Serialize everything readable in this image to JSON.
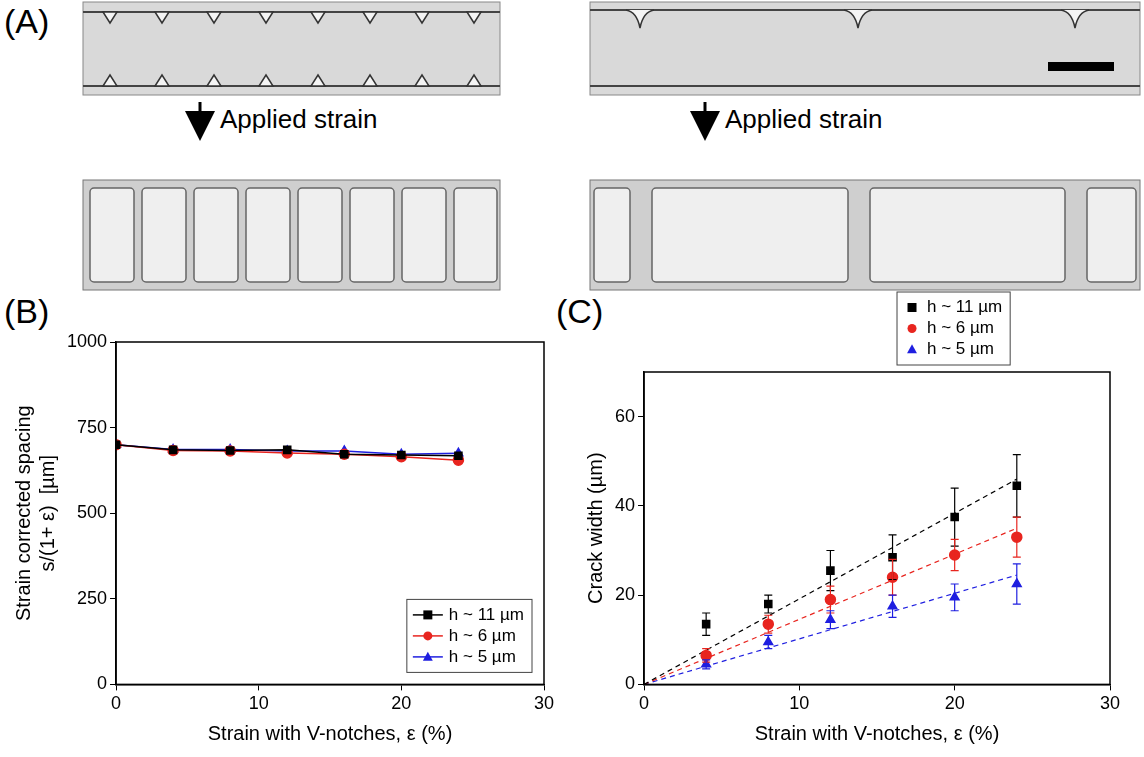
{
  "panel_labels": [
    "(A)",
    "(B)",
    "(C)"
  ],
  "panel_a": {
    "arrow_labels": [
      "Applied strain",
      "Applied strain"
    ]
  },
  "chart_data": [
    {
      "type": "line",
      "x_label": "Strain with V-notches, ε (%)",
      "y_label": [
        "Strain corrected spacing",
        "s/(1+ ε)  [µm]"
      ],
      "x": [
        0,
        4,
        8,
        12,
        16,
        20,
        24
      ],
      "series": [
        {
          "name": "h ~ 11 µm",
          "color": "#000000",
          "marker": "square",
          "values": [
            700,
            685,
            683,
            685,
            672,
            670,
            668
          ]
        },
        {
          "name": "h ~ 6 µm",
          "color": "#e8251f",
          "marker": "circle",
          "values": [
            700,
            683,
            682,
            676,
            672,
            665,
            655
          ]
        },
        {
          "name": "h ~ 5 µm",
          "color": "#1f1fe0",
          "marker": "triangle",
          "values": [
            700,
            686,
            686,
            682,
            682,
            672,
            675
          ]
        }
      ],
      "xlim": [
        0,
        30
      ],
      "xticks": [
        0,
        10,
        20,
        30
      ],
      "ylim": [
        0,
        1000
      ],
      "yticks": [
        0,
        250,
        500,
        750,
        1000
      ],
      "grid": false,
      "legend": "lower right"
    },
    {
      "type": "scatter",
      "x_label": "Strain with V-notches, ε (%)",
      "y_label": [
        "Crack width (µm)"
      ],
      "x": [
        4,
        8,
        12,
        16,
        20,
        24
      ],
      "series": [
        {
          "name": "h ~ 11 µm",
          "color": "#000000",
          "marker": "square",
          "values": [
            13.5,
            18,
            25.5,
            28.5,
            37.5,
            44.5
          ],
          "errors": [
            2.5,
            2,
            4.5,
            5,
            6.5,
            7
          ],
          "fit_x": [
            0,
            24
          ],
          "fit_values": [
            0,
            46
          ]
        },
        {
          "name": "h ~ 6 µm",
          "color": "#e8251f",
          "marker": "circle",
          "values": [
            6.5,
            13.5,
            19,
            24,
            29,
            33
          ],
          "errors": [
            1.5,
            2,
            3,
            4,
            3.5,
            4.5
          ],
          "fit_x": [
            0,
            24
          ],
          "fit_values": [
            0,
            35
          ]
        },
        {
          "name": "h ~ 5 µm",
          "color": "#1f1fe0",
          "marker": "triangle",
          "values": [
            4.5,
            9.5,
            14.5,
            17.5,
            19.5,
            22.5
          ],
          "errors": [
            1,
            1.5,
            2,
            2.5,
            3,
            4.5
          ],
          "fit_x": [
            0,
            24
          ],
          "fit_values": [
            0,
            24.5
          ]
        }
      ],
      "xlim": [
        0,
        30
      ],
      "xticks": [
        0,
        10,
        20,
        30
      ],
      "ylim": [
        0,
        70
      ],
      "yticks": [
        0,
        20,
        40,
        60
      ],
      "grid": false,
      "legend": "top"
    }
  ]
}
